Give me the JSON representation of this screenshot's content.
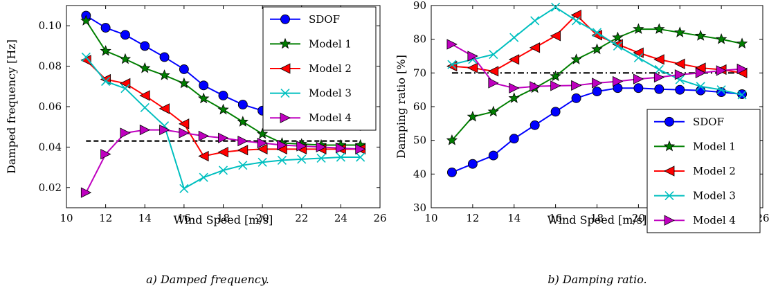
{
  "chart_data": [
    {
      "type": "line",
      "title": "",
      "caption": "a) Damped frequency.",
      "xlabel": "Wind Speed [m/s]",
      "ylabel": "Damped frequency [Hz]",
      "xlim": [
        10,
        26
      ],
      "ylim": [
        0.01,
        0.11
      ],
      "xticks": [
        10,
        12,
        14,
        16,
        18,
        20,
        22,
        24,
        26
      ],
      "yticks": [
        0.02,
        0.04,
        0.06,
        0.08,
        0.1
      ],
      "xtick_labels": [
        "10",
        "12",
        "14",
        "16",
        "18",
        "20",
        "22",
        "24",
        "26"
      ],
      "ytick_labels": [
        "0.02",
        "0.04",
        "0.06",
        "0.08",
        "0.10"
      ],
      "legend_position": "top-right",
      "grid": false,
      "x": [
        11,
        12,
        13,
        14,
        15,
        16,
        17,
        18,
        19,
        20,
        21,
        22,
        23,
        24,
        25
      ],
      "series": [
        {
          "name": "SDOF",
          "marker": "circle",
          "color": "#0000ff",
          "values": [
            0.105,
            0.099,
            0.0955,
            0.09,
            0.0845,
            0.0785,
            0.0705,
            0.0655,
            0.061,
            0.058,
            0.0555,
            0.054,
            0.0525,
            0.0515,
            0.0505
          ]
        },
        {
          "name": "Model 1",
          "marker": "star",
          "color": "#007f00",
          "values": [
            0.1025,
            0.0875,
            0.0835,
            0.079,
            0.0755,
            0.0715,
            0.064,
            0.0585,
            0.0525,
            0.0465,
            0.042,
            0.0415,
            0.041,
            0.041,
            0.041
          ]
        },
        {
          "name": "Model 2",
          "marker": "triangle-left",
          "color": "#ff0000",
          "values": [
            0.083,
            0.0735,
            0.0715,
            0.0655,
            0.059,
            0.0515,
            0.0355,
            0.0375,
            0.0385,
            0.039,
            0.039,
            0.039,
            0.039,
            0.039,
            0.039
          ]
        },
        {
          "name": "Model 3",
          "marker": "x",
          "color": "#00bfbf",
          "values": [
            0.0845,
            0.0725,
            0.069,
            0.0595,
            0.0505,
            0.0195,
            0.025,
            0.0285,
            0.031,
            0.0325,
            0.0335,
            0.034,
            0.0345,
            0.035,
            0.035
          ]
        },
        {
          "name": "Model 4",
          "marker": "triangle-right",
          "color": "#bf00bf",
          "values": [
            0.0175,
            0.0365,
            0.047,
            0.0485,
            0.0485,
            0.047,
            0.0455,
            0.0445,
            0.043,
            0.042,
            0.041,
            0.0405,
            0.04,
            0.0395,
            0.039
          ]
        }
      ],
      "reference_line": {
        "style": "dashed",
        "y": 0.043,
        "x_range": [
          11,
          25
        ]
      }
    },
    {
      "type": "line",
      "title": "",
      "caption": "b) Damping ratio.",
      "xlabel": "Wind Speed [m/s]",
      "ylabel": "Damping ratio [%]",
      "xlim": [
        10,
        26
      ],
      "ylim": [
        30,
        90
      ],
      "xticks": [
        10,
        12,
        14,
        16,
        18,
        20,
        22,
        24,
        26
      ],
      "yticks": [
        30,
        40,
        50,
        60,
        70,
        80,
        90
      ],
      "xtick_labels": [
        "10",
        "12",
        "14",
        "16",
        "18",
        "20",
        "22",
        "24",
        "26"
      ],
      "ytick_labels": [
        "30",
        "40",
        "50",
        "60",
        "70",
        "80",
        "90"
      ],
      "legend_position": "bottom-right",
      "grid": false,
      "x": [
        11,
        12,
        13,
        14,
        15,
        16,
        17,
        18,
        19,
        20,
        21,
        22,
        23,
        24,
        25
      ],
      "series": [
        {
          "name": "SDOF",
          "marker": "circle",
          "color": "#0000ff",
          "values": [
            40.5,
            43,
            45.5,
            50.5,
            54.5,
            58.5,
            62.5,
            64.5,
            65.5,
            65.5,
            65.2,
            65,
            64.8,
            64.3,
            63.7
          ]
        },
        {
          "name": "Model 1",
          "marker": "star",
          "color": "#007f00",
          "values": [
            50,
            57,
            58.5,
            62.5,
            65.5,
            69,
            74,
            77,
            80.5,
            83,
            83,
            82,
            81,
            80,
            78.7
          ]
        },
        {
          "name": "Model 2",
          "marker": "triangle-left",
          "color": "#ff0000",
          "values": [
            72,
            71.5,
            70.5,
            74,
            77.5,
            81,
            87.2,
            81.2,
            78.5,
            76,
            74,
            72.7,
            71.5,
            71,
            70
          ]
        },
        {
          "name": "Model 3",
          "marker": "x",
          "color": "#00bfbf",
          "values": [
            72.5,
            74,
            75.5,
            80.5,
            85.5,
            89.5,
            85.5,
            82,
            78,
            74.5,
            71,
            68,
            66,
            65,
            63.5
          ]
        },
        {
          "name": "Model 4",
          "marker": "triangle-right",
          "color": "#bf00bf",
          "values": [
            78.5,
            75,
            67,
            65.5,
            66,
            66.2,
            66.3,
            67,
            67.5,
            68.2,
            68.7,
            69.5,
            70,
            70.7,
            71.2
          ]
        }
      ],
      "reference_line": {
        "style": "dash-dot",
        "y": 70,
        "x_range": [
          11,
          25
        ]
      }
    }
  ]
}
